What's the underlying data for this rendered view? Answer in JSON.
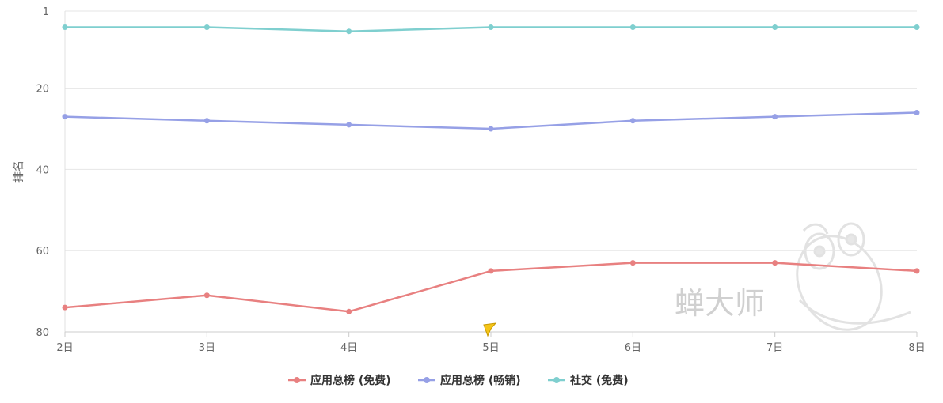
{
  "chart_data": {
    "type": "line",
    "title": "",
    "xlabel": "",
    "ylabel": "排名",
    "categories": [
      "2日",
      "3日",
      "4日",
      "5日",
      "6日",
      "7日",
      "8日"
    ],
    "y_ticks": [
      "1",
      "20",
      "40",
      "60",
      "80"
    ],
    "y_tick_values": [
      1,
      20,
      40,
      60,
      80
    ],
    "ylim": [
      1,
      80
    ],
    "y_inverted": true,
    "grid": "horizontal",
    "legend_position": "bottom-center",
    "series": [
      {
        "name": "应用总榜 (免费)",
        "color": "#e88080",
        "values": [
          74,
          71,
          75,
          65,
          63,
          63,
          65
        ]
      },
      {
        "name": "应用总榜 (畅销)",
        "color": "#96a0e6",
        "values": [
          27,
          28,
          29,
          30,
          28,
          27,
          26
        ]
      },
      {
        "name": "社交 (免费)",
        "color": "#7fcfcf",
        "values": [
          5,
          5,
          6,
          5,
          5,
          5,
          5
        ]
      }
    ]
  },
  "watermark": {
    "text": "蝉大师"
  }
}
